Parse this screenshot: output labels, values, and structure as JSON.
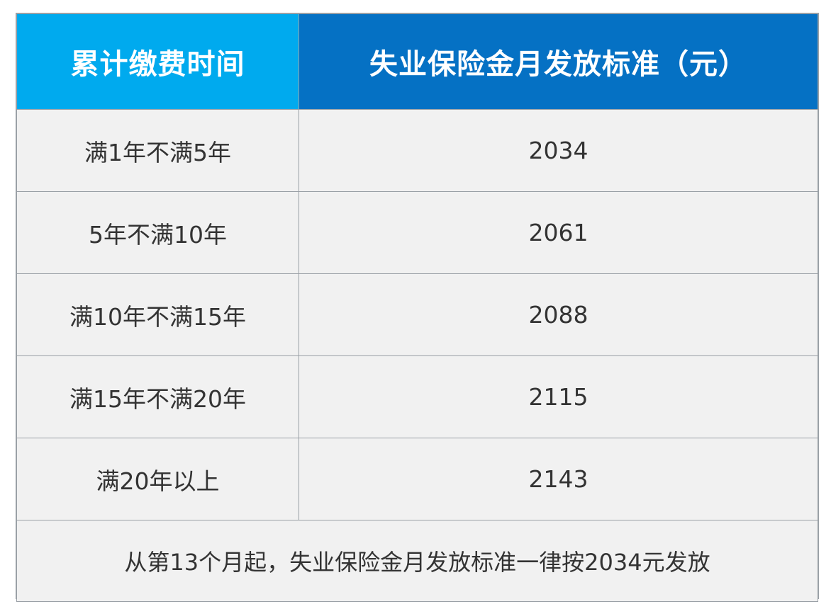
{
  "table": {
    "headers": {
      "period": "累计缴费时间",
      "standard": "失业保险金月发放标准（元）"
    },
    "rows": [
      {
        "period": "满1年不满5年",
        "amount": "2034"
      },
      {
        "period": "5年不满10年",
        "amount": "2061"
      },
      {
        "period": "满10年不满15年",
        "amount": "2088"
      },
      {
        "period": "满15年不满20年",
        "amount": "2115"
      },
      {
        "period": "满20年以上",
        "amount": "2143"
      }
    ],
    "note": "从第13个月起，失业保险金月发放标准一律按2034元发放"
  },
  "colors": {
    "header_left": "#00aaee",
    "header_right": "#0571c4",
    "cell_bg": "#f1f1f1",
    "border": "#9aa0a6",
    "text": "#333333"
  }
}
